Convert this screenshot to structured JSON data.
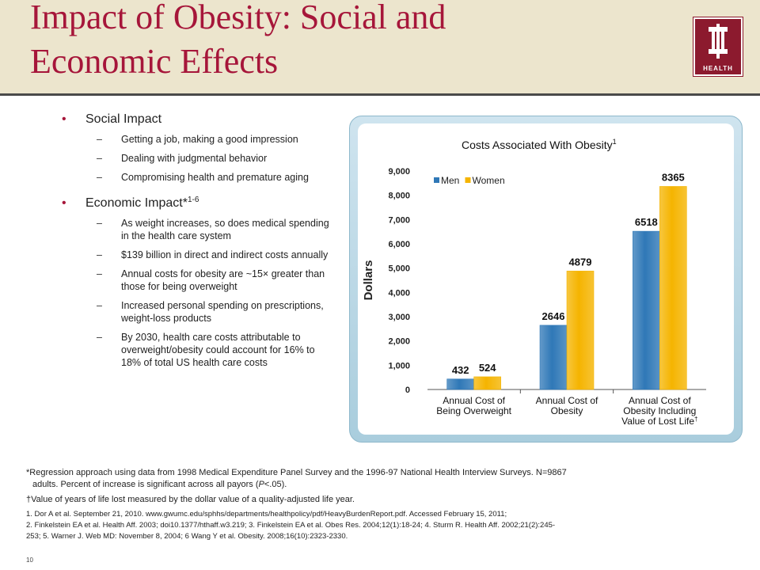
{
  "header": {
    "title_line1": "Impact of Obesity: Social and",
    "title_line2": "Economic Effects",
    "logo_text": "HEALTH"
  },
  "bullets": {
    "social": {
      "label": "Social Impact",
      "items": [
        "Getting a job, making a good impression",
        "Dealing with judgmental behavior",
        "Compromising health and premature aging"
      ]
    },
    "economic": {
      "label": "Economic Impact*",
      "sup": "1-6",
      "items": [
        "As weight increases, so does medical spending in the health care system",
        "$139 billion in direct and indirect costs annually",
        "Annual costs for obesity are ~15× greater than those for being overweight",
        "Increased personal spending on prescriptions, weight-loss products",
        "By 2030, health care costs attributable to overweight/obesity could account for 16% to 18% of total US health care costs"
      ]
    }
  },
  "chart_data": {
    "type": "bar",
    "title": "Costs Associated With Obesity",
    "title_sup": "1",
    "ylabel": "Dollars",
    "ylim": [
      0,
      9000
    ],
    "y_ticks": [
      "0",
      "1,000",
      "2,000",
      "3,000",
      "4,000",
      "5,000",
      "6,000",
      "7,000",
      "8,000",
      "9,000"
    ],
    "categories": [
      [
        "Annual Cost of",
        "Being Overweight"
      ],
      [
        "Annual Cost of",
        "Obesity"
      ],
      [
        "Annual Cost of",
        "Obesity  Including",
        "Value of Lost Life"
      ]
    ],
    "category_sup": [
      "",
      "",
      "†"
    ],
    "series": [
      {
        "name": "Men",
        "values": [
          432,
          2646,
          6518
        ],
        "color": "#2f78b7"
      },
      {
        "name": "Women",
        "values": [
          524,
          4879,
          8365
        ],
        "color": "#f5b400"
      }
    ],
    "legend_position": "top-left",
    "grid": false
  },
  "footnotes": {
    "regression_a": "*Regression approach using data from 1998 Medical Expenditure Panel Survey and the 1996-97 National Health Interview Surveys. N=9867",
    "regression_b": "adults. Percent of increase is significant across all payors (",
    "regression_p": "P",
    "regression_c": "<.05).",
    "value_note": "†Value of years of life lost measured by the dollar value of a quality-adjusted life year.",
    "ref_line1": "1. Dor A et al. September 21, 2010. www.gwumc.edu/sphhs/departments/healthpolicy/pdf/HeavyBurdenReport.pdf. Accessed February 15, 2011;",
    "ref_line2": "2. Finkelstein EA et al. Health Aff. 2003; doi10.1377/hthaff.w3.219; 3. Finkelstein EA et al. Obes Res. 2004;12(1):18-24; 4. Sturm R. Health Aff. 2002;21(2):245-",
    "ref_line3": "253; 5. Warner J. Web MD: November 8, 2004; 6 Wang Y et al. Obesity. 2008;16(10):2323-2330."
  },
  "page_number": "10"
}
